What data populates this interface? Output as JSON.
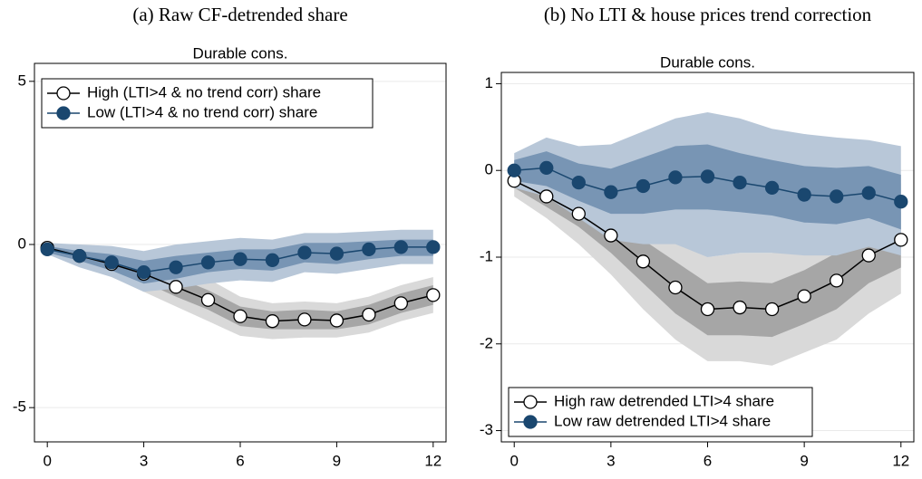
{
  "chart_data": [
    {
      "type": "line",
      "caption": "(a) Raw CF-detrended share",
      "title": "Durable cons.",
      "x": [
        0,
        1,
        2,
        3,
        4,
        5,
        6,
        7,
        8,
        9,
        10,
        11,
        12
      ],
      "xlim": [
        -0.4,
        12.4
      ],
      "xticks": [
        0,
        3,
        6,
        9,
        12
      ],
      "ylim": [
        -6.05,
        5.55
      ],
      "yticks": [
        -5,
        0,
        5
      ],
      "grid": true,
      "legend": "upper left",
      "series": [
        {
          "name": "High (LTI>4 & no trend corr) share",
          "color": "#000000",
          "marker": "hollow",
          "band_colors": [
            "#d9d9d9",
            "#a6a6a6"
          ],
          "values": [
            -0.1,
            -0.35,
            -0.6,
            -0.9,
            -1.3,
            -1.7,
            -2.2,
            -2.35,
            -2.3,
            -2.33,
            -2.15,
            -1.8,
            -1.55
          ],
          "outer_upper": [
            0,
            -0.1,
            -0.2,
            -0.35,
            -0.7,
            -1.05,
            -1.6,
            -1.8,
            -1.75,
            -1.8,
            -1.6,
            -1.25,
            -1.0
          ],
          "outer_lower": [
            -0.2,
            -0.6,
            -1.0,
            -1.45,
            -1.9,
            -2.35,
            -2.8,
            -2.9,
            -2.85,
            -2.85,
            -2.7,
            -2.35,
            -2.1
          ],
          "inner_upper": [
            -0.05,
            -0.2,
            -0.4,
            -0.65,
            -1.0,
            -1.4,
            -1.9,
            -2.05,
            -2.0,
            -2.05,
            -1.85,
            -1.5,
            -1.25
          ],
          "inner_lower": [
            -0.15,
            -0.5,
            -0.8,
            -1.15,
            -1.6,
            -2.0,
            -2.5,
            -2.6,
            -2.6,
            -2.6,
            -2.45,
            -2.1,
            -1.85
          ]
        },
        {
          "name": "Low (LTI>4 & no trend corr) share",
          "color": "#1a476f",
          "marker": "filled",
          "band_colors": [
            "#b8c7d8",
            "#7895b4"
          ],
          "values": [
            -0.15,
            -0.35,
            -0.55,
            -0.85,
            -0.7,
            -0.55,
            -0.45,
            -0.48,
            -0.25,
            -0.28,
            -0.15,
            -0.08,
            -0.08
          ],
          "outer_upper": [
            0.05,
            0,
            -0.05,
            -0.2,
            0,
            0.1,
            0.2,
            0.15,
            0.35,
            0.35,
            0.4,
            0.45,
            0.45
          ],
          "outer_lower": [
            -0.3,
            -0.7,
            -1.0,
            -1.45,
            -1.35,
            -1.2,
            -1.1,
            -1.15,
            -0.85,
            -0.9,
            -0.75,
            -0.6,
            -0.6
          ],
          "inner_upper": [
            -0.05,
            -0.2,
            -0.3,
            -0.5,
            -0.35,
            -0.25,
            -0.15,
            -0.15,
            0.05,
            0.05,
            0.1,
            0.15,
            0.15
          ],
          "inner_lower": [
            -0.25,
            -0.5,
            -0.8,
            -1.2,
            -1.05,
            -0.85,
            -0.75,
            -0.8,
            -0.55,
            -0.6,
            -0.45,
            -0.35,
            -0.35
          ]
        }
      ]
    },
    {
      "type": "line",
      "caption": "(b) No LTI & house prices trend correction",
      "title": "Durable cons.",
      "x": [
        0,
        1,
        2,
        3,
        4,
        5,
        6,
        7,
        8,
        9,
        10,
        11,
        12
      ],
      "xlim": [
        -0.4,
        12.4
      ],
      "xticks": [
        0,
        3,
        6,
        9,
        12
      ],
      "ylim": [
        -3.13,
        1.13
      ],
      "yticks": [
        -3,
        -2,
        -1,
        0,
        1
      ],
      "grid": true,
      "legend": "lower left",
      "series": [
        {
          "name": "High raw detrended LTI>4 share",
          "color": "#000000",
          "marker": "hollow",
          "band_colors": [
            "#d9d9d9",
            "#a6a6a6"
          ],
          "values": [
            -0.12,
            -0.3,
            -0.5,
            -0.75,
            -1.05,
            -1.35,
            -1.6,
            -1.58,
            -1.6,
            -1.45,
            -1.27,
            -0.98,
            -0.8
          ],
          "outer_upper": [
            0.05,
            -0.05,
            -0.15,
            -0.3,
            -0.5,
            -0.75,
            -1.0,
            -0.95,
            -0.95,
            -0.8,
            -0.6,
            -0.3,
            -0.15
          ],
          "outer_lower": [
            -0.3,
            -0.55,
            -0.85,
            -1.2,
            -1.6,
            -1.95,
            -2.2,
            -2.2,
            -2.25,
            -2.1,
            -1.95,
            -1.65,
            -1.42
          ],
          "inner_upper": [
            -0.05,
            -0.18,
            -0.35,
            -0.55,
            -0.8,
            -1.05,
            -1.3,
            -1.28,
            -1.3,
            -1.15,
            -0.95,
            -0.65,
            -0.48
          ],
          "inner_lower": [
            -0.2,
            -0.42,
            -0.65,
            -0.95,
            -1.3,
            -1.65,
            -1.9,
            -1.9,
            -1.92,
            -1.77,
            -1.6,
            -1.3,
            -1.12
          ]
        },
        {
          "name": "Low raw detrended LTI>4 share",
          "color": "#1a476f",
          "marker": "filled",
          "band_colors": [
            "#b8c7d8",
            "#7895b4"
          ],
          "values": [
            0,
            0.03,
            -0.14,
            -0.25,
            -0.18,
            -0.08,
            -0.07,
            -0.14,
            -0.2,
            -0.28,
            -0.3,
            -0.26,
            -0.36
          ],
          "outer_upper": [
            0.2,
            0.38,
            0.28,
            0.3,
            0.45,
            0.6,
            0.67,
            0.6,
            0.48,
            0.42,
            0.38,
            0.35,
            0.28
          ],
          "outer_lower": [
            -0.2,
            -0.3,
            -0.55,
            -0.8,
            -0.85,
            -0.85,
            -1.0,
            -0.95,
            -0.95,
            -0.98,
            -0.98,
            -0.88,
            -0.98
          ],
          "inner_upper": [
            0.12,
            0.22,
            0.08,
            0.02,
            0.15,
            0.28,
            0.3,
            0.2,
            0.12,
            0.05,
            0.03,
            0.05,
            -0.05
          ],
          "inner_lower": [
            -0.12,
            -0.18,
            -0.35,
            -0.5,
            -0.5,
            -0.45,
            -0.45,
            -0.48,
            -0.52,
            -0.6,
            -0.62,
            -0.55,
            -0.68
          ]
        }
      ]
    }
  ]
}
